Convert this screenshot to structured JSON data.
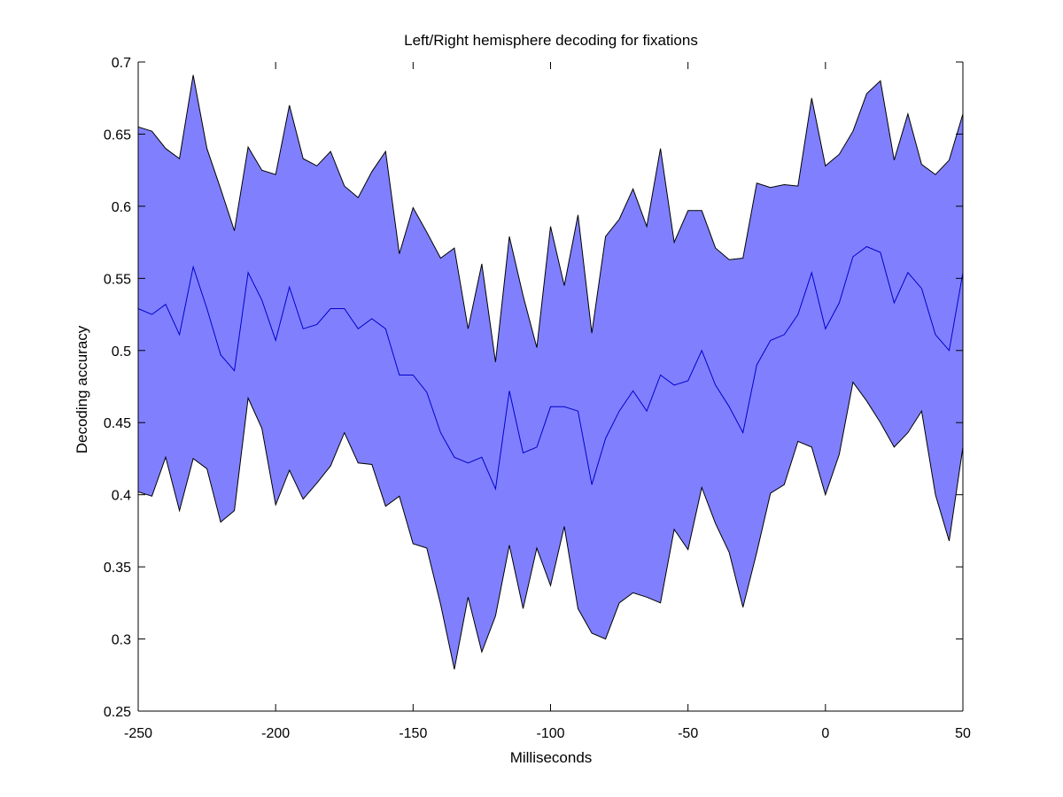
{
  "chart_data": {
    "type": "area",
    "title": "Left/Right hemisphere decoding for fixations",
    "xlabel": "Milliseconds",
    "ylabel": "Decoding accuracy",
    "xlim": [
      -250,
      50
    ],
    "ylim": [
      0.25,
      0.7
    ],
    "xticks": [
      -250,
      -200,
      -150,
      -100,
      -50,
      0,
      50
    ],
    "xtick_labels": [
      "-250",
      "-200",
      "-150",
      "-100",
      "-50",
      "0",
      "50"
    ],
    "yticks": [
      0.25,
      0.3,
      0.35,
      0.4,
      0.45,
      0.5,
      0.55,
      0.6,
      0.65,
      0.7
    ],
    "ytick_labels": [
      "0.25",
      "0.3",
      "0.35",
      "0.4",
      "0.45",
      "0.5",
      "0.55",
      "0.6",
      "0.65",
      "0.7"
    ],
    "grid": false,
    "colors": {
      "band_fill": "#8080ff",
      "band_edge": "#000000",
      "mean_line": "#0000cc"
    },
    "x": [
      -250,
      -245,
      -240,
      -235,
      -230,
      -225,
      -220,
      -215,
      -210,
      -205,
      -200,
      -195,
      -190,
      -185,
      -180,
      -175,
      -170,
      -165,
      -160,
      -155,
      -150,
      -145,
      -140,
      -135,
      -130,
      -125,
      -120,
      -115,
      -110,
      -105,
      -100,
      -95,
      -90,
      -85,
      -80,
      -75,
      -70,
      -65,
      -60,
      -55,
      -50,
      -45,
      -40,
      -35,
      -30,
      -25,
      -20,
      -15,
      -10,
      -5,
      0,
      5,
      10,
      15,
      20,
      25,
      30,
      35,
      40,
      45,
      50
    ],
    "series": [
      {
        "role": "upper",
        "values": [
          0.655,
          0.652,
          0.64,
          0.633,
          0.691,
          0.64,
          0.612,
          0.583,
          0.641,
          0.625,
          0.622,
          0.67,
          0.633,
          0.628,
          0.638,
          0.614,
          0.606,
          0.624,
          0.638,
          0.567,
          0.599,
          0.582,
          0.564,
          0.571,
          0.515,
          0.56,
          0.492,
          0.579,
          0.538,
          0.502,
          0.586,
          0.545,
          0.594,
          0.512,
          0.579,
          0.591,
          0.612,
          0.586,
          0.64,
          0.575,
          0.597,
          0.597,
          0.571,
          0.563,
          0.564,
          0.616,
          0.613,
          0.615,
          0.614,
          0.675,
          0.628,
          0.636,
          0.652,
          0.678,
          0.687,
          0.632,
          0.664,
          0.629,
          0.622,
          0.632,
          0.664
        ]
      },
      {
        "role": "mean",
        "values": [
          0.529,
          0.525,
          0.532,
          0.511,
          0.558,
          0.529,
          0.497,
          0.486,
          0.554,
          0.535,
          0.507,
          0.544,
          0.515,
          0.518,
          0.529,
          0.529,
          0.515,
          0.522,
          0.515,
          0.483,
          0.483,
          0.471,
          0.443,
          0.426,
          0.422,
          0.426,
          0.404,
          0.472,
          0.429,
          0.433,
          0.461,
          0.461,
          0.458,
          0.407,
          0.439,
          0.458,
          0.472,
          0.458,
          0.483,
          0.476,
          0.479,
          0.5,
          0.476,
          0.461,
          0.443,
          0.49,
          0.507,
          0.511,
          0.525,
          0.554,
          0.515,
          0.533,
          0.565,
          0.572,
          0.568,
          0.533,
          0.554,
          0.543,
          0.511,
          0.5,
          0.554
        ]
      },
      {
        "role": "lower",
        "values": [
          0.402,
          0.399,
          0.426,
          0.389,
          0.425,
          0.418,
          0.381,
          0.389,
          0.467,
          0.446,
          0.393,
          0.417,
          0.397,
          0.408,
          0.42,
          0.443,
          0.422,
          0.421,
          0.392,
          0.399,
          0.366,
          0.363,
          0.324,
          0.279,
          0.329,
          0.291,
          0.316,
          0.365,
          0.321,
          0.363,
          0.337,
          0.378,
          0.321,
          0.304,
          0.3,
          0.325,
          0.332,
          0.329,
          0.325,
          0.376,
          0.362,
          0.405,
          0.38,
          0.36,
          0.322,
          0.36,
          0.401,
          0.407,
          0.437,
          0.433,
          0.4,
          0.428,
          0.478,
          0.465,
          0.45,
          0.433,
          0.443,
          0.458,
          0.4,
          0.368,
          0.433
        ]
      }
    ]
  }
}
